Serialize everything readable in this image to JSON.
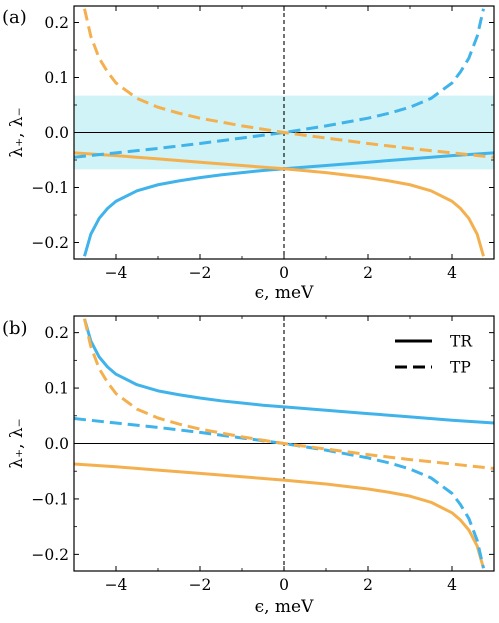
{
  "chart_data": [
    {
      "type": "line",
      "panel_label": "(a)",
      "xlabel": "ϵ, meV",
      "ylabel": "λ₊, λ₋",
      "xlim": [
        -5,
        5
      ],
      "ylim": [
        -0.23,
        0.23
      ],
      "xticks": [
        -4,
        -2,
        0,
        2,
        4
      ],
      "xtick_labels": [
        "−4",
        "−2",
        "0",
        "2",
        "4"
      ],
      "yticks": [
        -0.2,
        -0.1,
        0.0,
        0.1,
        0.2
      ],
      "ytick_labels": [
        "−0.2",
        "−0.1",
        "0.0",
        "0.1",
        "0.2"
      ],
      "shaded_band": {
        "y": [
          -0.067,
          0.067
        ],
        "color": "#cff3f6"
      },
      "hline": 0,
      "vline": 0,
      "grid": false,
      "series": [
        {
          "style": "solid",
          "color": "#3fb3ea",
          "x": [
            -4.75,
            -4.6,
            -4.4,
            -4.2,
            -4,
            -3.5,
            -3,
            -2.5,
            -2,
            -1.5,
            -1,
            -0.5,
            0,
            1,
            2,
            3,
            4,
            5
          ],
          "y": [
            -0.225,
            -0.185,
            -0.156,
            -0.138,
            -0.125,
            -0.106,
            -0.095,
            -0.088,
            -0.082,
            -0.077,
            -0.073,
            -0.069,
            -0.066,
            -0.06,
            -0.054,
            -0.048,
            -0.042,
            -0.037
          ]
        },
        {
          "style": "solid",
          "color": "#f4b04f",
          "x": [
            -5,
            -4,
            -3,
            -2,
            -1,
            0,
            1,
            2,
            2.5,
            3,
            3.5,
            4,
            4.2,
            4.4,
            4.6,
            4.75
          ],
          "y": [
            -0.037,
            -0.042,
            -0.048,
            -0.054,
            -0.06,
            -0.066,
            -0.073,
            -0.082,
            -0.088,
            -0.095,
            -0.106,
            -0.125,
            -0.138,
            -0.156,
            -0.185,
            -0.225
          ]
        },
        {
          "style": "dashed",
          "color": "#3fb3ea",
          "x": [
            -5,
            -4,
            -3,
            -2,
            -1,
            0,
            1,
            2,
            2.5,
            3,
            3.5,
            4,
            4.2,
            4.4,
            4.6,
            4.75
          ],
          "y": [
            -0.045,
            -0.037,
            -0.029,
            -0.02,
            -0.01,
            0.0,
            0.012,
            0.026,
            0.035,
            0.046,
            0.062,
            0.09,
            0.11,
            0.135,
            0.175,
            0.225
          ]
        },
        {
          "style": "dashed",
          "color": "#f4b04f",
          "x": [
            -4.75,
            -4.6,
            -4.4,
            -4.2,
            -4,
            -3.5,
            -3,
            -2.5,
            -2,
            -1,
            0,
            1,
            2,
            3,
            4,
            5
          ],
          "y": [
            0.225,
            0.175,
            0.135,
            0.11,
            0.09,
            0.062,
            0.046,
            0.035,
            0.026,
            0.012,
            0.0,
            -0.01,
            -0.02,
            -0.029,
            -0.037,
            -0.045
          ]
        }
      ]
    },
    {
      "type": "line",
      "panel_label": "(b)",
      "xlabel": "ϵ, meV",
      "ylabel": "λ₊, λ₋",
      "xlim": [
        -5,
        5
      ],
      "ylim": [
        -0.23,
        0.23
      ],
      "xticks": [
        -4,
        -2,
        0,
        2,
        4
      ],
      "xtick_labels": [
        "−4",
        "−2",
        "0",
        "2",
        "4"
      ],
      "yticks": [
        -0.2,
        -0.1,
        0.0,
        0.1,
        0.2
      ],
      "ytick_labels": [
        "−0.2",
        "−0.1",
        "0.0",
        "0.1",
        "0.2"
      ],
      "hline": 0,
      "vline": 0,
      "grid": false,
      "legend": {
        "position": "top-right",
        "entries": [
          {
            "label": "TR",
            "style": "solid"
          },
          {
            "label": "TP",
            "style": "dashed"
          }
        ]
      },
      "series": [
        {
          "style": "solid",
          "color": "#3fb3ea",
          "x": [
            -4.75,
            -4.6,
            -4.4,
            -4.2,
            -4,
            -3.5,
            -3,
            -2.5,
            -2,
            -1.5,
            -1,
            -0.5,
            0,
            1,
            2,
            3,
            4,
            5
          ],
          "y": [
            0.225,
            0.185,
            0.156,
            0.138,
            0.125,
            0.106,
            0.095,
            0.088,
            0.082,
            0.077,
            0.073,
            0.069,
            0.066,
            0.06,
            0.054,
            0.048,
            0.042,
            0.037
          ]
        },
        {
          "style": "solid",
          "color": "#f4b04f",
          "x": [
            -5,
            -4,
            -3,
            -2,
            -1,
            0,
            1,
            2,
            2.5,
            3,
            3.5,
            4,
            4.2,
            4.4,
            4.6,
            4.75
          ],
          "y": [
            -0.037,
            -0.042,
            -0.048,
            -0.054,
            -0.06,
            -0.066,
            -0.073,
            -0.082,
            -0.088,
            -0.095,
            -0.106,
            -0.125,
            -0.138,
            -0.156,
            -0.185,
            -0.225
          ]
        },
        {
          "style": "dashed",
          "color": "#3fb3ea",
          "x": [
            -5,
            -4,
            -3,
            -2,
            -1,
            0,
            1,
            2,
            2.5,
            3,
            3.5,
            4,
            4.2,
            4.4,
            4.6,
            4.75
          ],
          "y": [
            0.045,
            0.037,
            0.029,
            0.02,
            0.01,
            0.0,
            -0.012,
            -0.026,
            -0.035,
            -0.046,
            -0.062,
            -0.09,
            -0.11,
            -0.135,
            -0.175,
            -0.225
          ]
        },
        {
          "style": "dashed",
          "color": "#f4b04f",
          "x": [
            -4.75,
            -4.6,
            -4.4,
            -4.2,
            -4,
            -3.5,
            -3,
            -2.5,
            -2,
            -1,
            0,
            1,
            2,
            3,
            4,
            5
          ],
          "y": [
            0.225,
            0.175,
            0.135,
            0.11,
            0.09,
            0.062,
            0.046,
            0.035,
            0.026,
            0.012,
            0.0,
            -0.01,
            -0.02,
            -0.029,
            -0.037,
            -0.045
          ]
        }
      ]
    }
  ]
}
